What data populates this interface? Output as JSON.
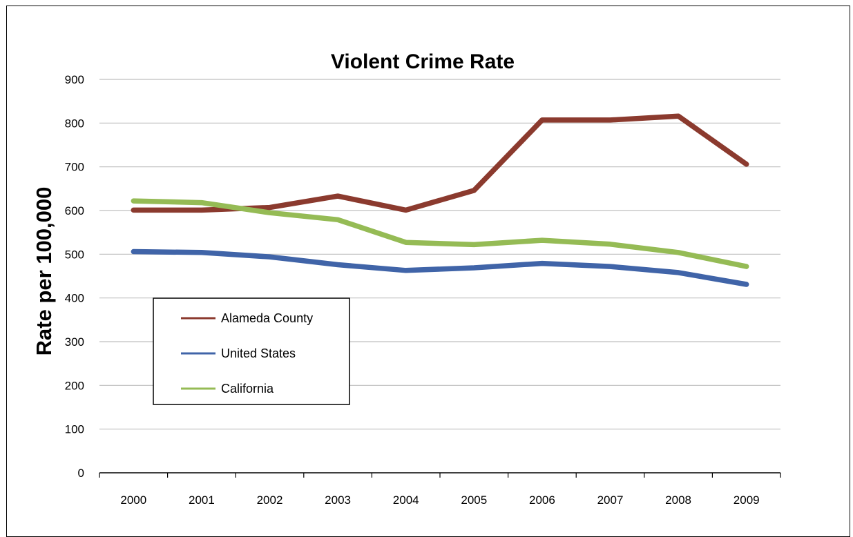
{
  "chart_data": {
    "type": "line",
    "title": "Violent Crime Rate",
    "xlabel": "",
    "ylabel": "Rate per 100,000",
    "x": [
      "2000",
      "2001",
      "2002",
      "2003",
      "2004",
      "2005",
      "2006",
      "2007",
      "2008",
      "2009"
    ],
    "ylim": [
      0,
      900
    ],
    "yticks": [
      0,
      100,
      200,
      300,
      400,
      500,
      600,
      700,
      800,
      900
    ],
    "grid": true,
    "legend_position": "left",
    "series": [
      {
        "name": "Alameda County",
        "color": "#8B3A2E",
        "values": [
          601,
          601,
          607,
          633,
          601,
          646,
          807,
          807,
          816,
          706
        ]
      },
      {
        "name": "United States",
        "color": "#4064A8",
        "values": [
          506,
          504,
          494,
          476,
          463,
          469,
          479,
          472,
          458,
          431
        ]
      },
      {
        "name": "California",
        "color": "#95BB55",
        "values": [
          622,
          618,
          595,
          579,
          527,
          522,
          532,
          523,
          504,
          472
        ]
      }
    ]
  }
}
